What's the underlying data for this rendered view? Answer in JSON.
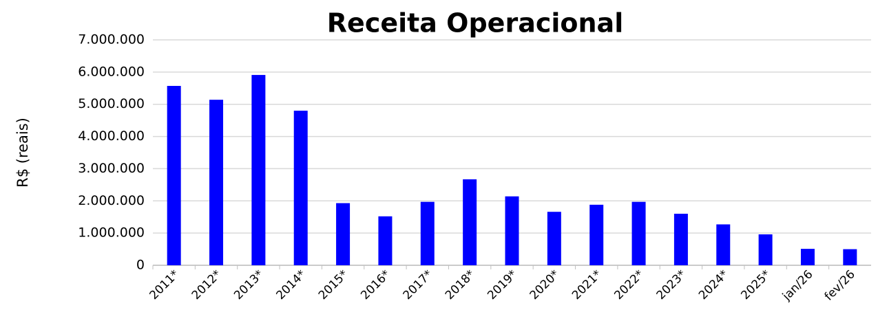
{
  "chart_data": {
    "type": "bar",
    "title": "Receita Operacional",
    "y_label": "R$ (reais)",
    "categories": [
      "2011*",
      "2012*",
      "2013*",
      "2014*",
      "2015*",
      "2016*",
      "2017*",
      "2018*",
      "2019*",
      "2020*",
      "2021*",
      "2022*",
      "2023*",
      "2024*",
      "2025*",
      "jan/26",
      "fev/26"
    ],
    "values": [
      5570000,
      5140000,
      5910000,
      4800000,
      1930000,
      1520000,
      1970000,
      2670000,
      2140000,
      1660000,
      1880000,
      1970000,
      1600000,
      1270000,
      960000,
      510000,
      500000
    ],
    "color": "#0000ff",
    "ylim": [
      0,
      7000000
    ],
    "yticks": [
      0,
      {
        "value": 1000000,
        "label": "1.000.000"
      },
      {
        "value": 2000000,
        "label": "2.000.000"
      },
      {
        "value": 3000000,
        "label": "3.000.000"
      },
      {
        "value": 4000000,
        "label": "4.000.000"
      },
      {
        "value": 5000000,
        "label": "5.000.000"
      },
      {
        "value": 6000000,
        "label": "6.000.000"
      },
      {
        "value": 7000000,
        "label": "7.000.000"
      }
    ],
    "grid": true
  }
}
